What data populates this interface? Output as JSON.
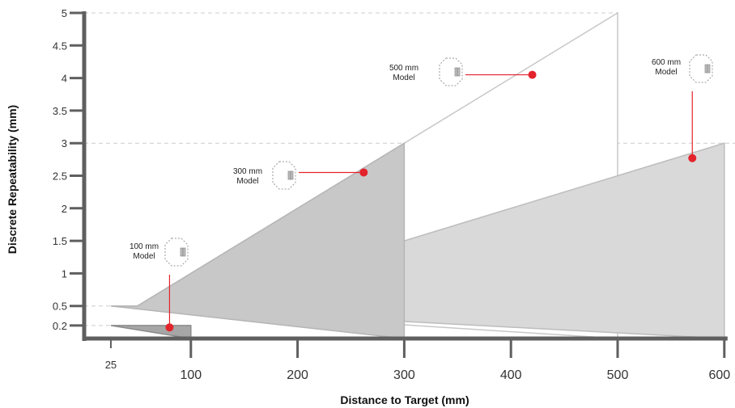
{
  "chart_data": {
    "type": "area",
    "title": "",
    "xlabel": "Distance to Target (mm)",
    "ylabel": "Discrete Repeatability (mm)",
    "xlim": [
      0,
      600
    ],
    "ylim": [
      0,
      5
    ],
    "x_ticks": [
      {
        "value": 25,
        "label": "25"
      },
      {
        "value": 100,
        "label": "100"
      },
      {
        "value": 200,
        "label": "200"
      },
      {
        "value": 300,
        "label": "300"
      },
      {
        "value": 400,
        "label": "400"
      },
      {
        "value": 500,
        "label": "500"
      },
      {
        "value": 600,
        "label": "600"
      }
    ],
    "y_ticks": [
      {
        "value": 0.2,
        "label": "0.2"
      },
      {
        "value": 0.5,
        "label": "0.5"
      },
      {
        "value": 1,
        "label": "1"
      },
      {
        "value": 1.5,
        "label": "1.5"
      },
      {
        "value": 2,
        "label": "2"
      },
      {
        "value": 2.5,
        "label": "2.5"
      },
      {
        "value": 3,
        "label": "3"
      },
      {
        "value": 3.5,
        "label": "3.5"
      },
      {
        "value": 4,
        "label": "4"
      },
      {
        "value": 4.5,
        "label": "4.5"
      },
      {
        "value": 5,
        "label": "5"
      }
    ],
    "reference_lines_y": [
      0.2,
      0.5,
      3,
      5
    ],
    "series": [
      {
        "label_lines": [
          "500 mm",
          "Model"
        ],
        "points": [
          [
            25,
            0.5
          ],
          [
            50,
            0.5
          ],
          [
            500,
            5
          ],
          [
            500,
            0
          ]
        ],
        "fill": "#ffffff",
        "stroke": "#c8c8c8",
        "marker": [
          420,
          4.05
        ]
      },
      {
        "label_lines": [
          "600 mm",
          "Model"
        ],
        "points": [
          [
            25,
            0.5
          ],
          [
            100,
            0.5
          ],
          [
            600,
            3
          ],
          [
            600,
            0
          ]
        ],
        "fill": "#d9d9d9",
        "stroke": "#bdbdbd",
        "marker": [
          570,
          2.77
        ]
      },
      {
        "label_lines": [
          "300 mm",
          "Model"
        ],
        "points": [
          [
            25,
            0.5
          ],
          [
            50,
            0.5
          ],
          [
            300,
            3
          ],
          [
            300,
            0
          ]
        ],
        "fill": "#c8c8c8",
        "stroke": "#b5b5b5",
        "marker": [
          262,
          2.55
        ]
      },
      {
        "label_lines": [
          "100 mm",
          "Model"
        ],
        "points": [
          [
            25,
            0.2
          ],
          [
            100,
            0.2
          ],
          [
            100,
            0
          ]
        ],
        "fill": "#a6a6a6",
        "stroke": "#8c8c8c",
        "marker": [
          80,
          0.17
        ]
      }
    ],
    "colors": {
      "axis": "#5f5f5f",
      "marker": "#e3232c",
      "grid": "#cccccc"
    }
  }
}
